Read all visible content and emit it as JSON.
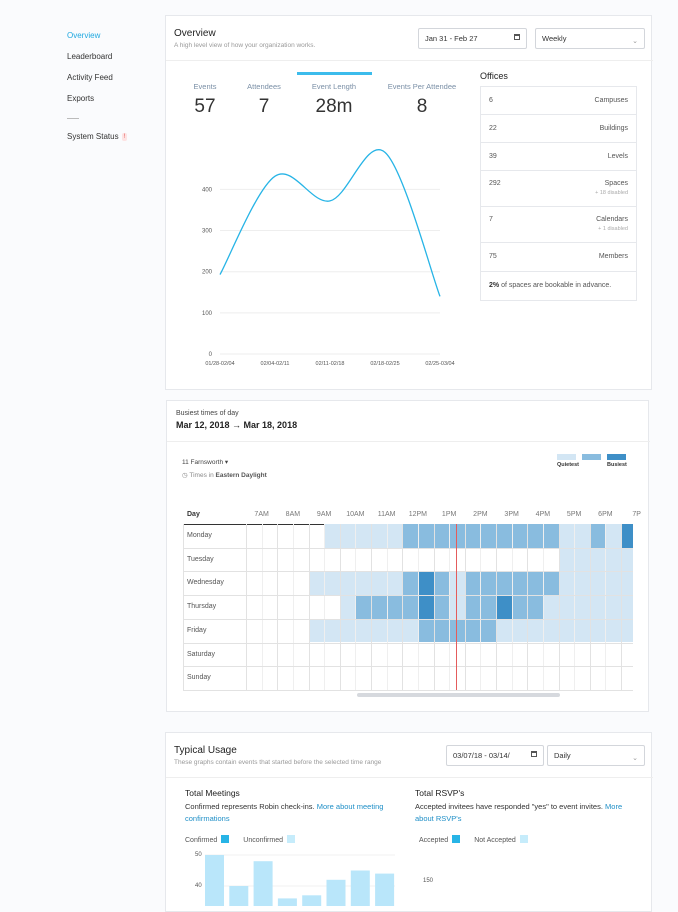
{
  "sidebar": {
    "items": [
      {
        "label": "Overview",
        "active": true
      },
      {
        "label": "Leaderboard"
      },
      {
        "label": "Activity Feed"
      },
      {
        "label": "Exports"
      }
    ],
    "status_label": "System Status",
    "status_badge": "!"
  },
  "overview": {
    "title": "Overview",
    "subtitle": "A high level view of how your organization works.",
    "date_range": "Jan 31 - Feb 27",
    "interval": "Weekly",
    "stats": [
      {
        "label": "Events",
        "value": "57"
      },
      {
        "label": "Attendees",
        "value": "7"
      },
      {
        "label": "Event Length",
        "value": "28m",
        "selected": true
      },
      {
        "label": "Events Per Attendee",
        "value": "8"
      }
    ]
  },
  "chart_data": {
    "type": "line",
    "categories": [
      "01/28-02/04",
      "02/04-02/11",
      "02/11-02/18",
      "02/18-02/25",
      "02/25-03/04"
    ],
    "values": [
      193,
      432,
      372,
      490,
      140
    ],
    "y_ticks": [
      "0",
      "100",
      "200",
      "300",
      "400"
    ],
    "ylim": [
      0,
      520
    ],
    "color": "#27b4e6",
    "grid": true
  },
  "offices": {
    "title": "Offices",
    "rows": [
      {
        "count": "6",
        "label": "Campuses"
      },
      {
        "count": "22",
        "label": "Buildings"
      },
      {
        "count": "39",
        "label": "Levels"
      },
      {
        "count": "292",
        "label": "Spaces",
        "note": "+ 18 disabled"
      },
      {
        "count": "7",
        "label": "Calendars",
        "note": "+ 1 disabled"
      },
      {
        "count": "75",
        "label": "Members"
      }
    ],
    "footer_bold": "2%",
    "footer_text": " of spaces are bookable in advance."
  },
  "busiest": {
    "label": "Busiest times of day",
    "range": "Mar 12, 2018 → Mar 18, 2018",
    "location": "11 Farnsworth",
    "timezone_prefix": "Times in ",
    "timezone": "Eastern Daylight",
    "legend_low": "Quietest",
    "legend_high": "Busiest",
    "colors": {
      "l1": "#d3e6f4",
      "l2": "#89bcdf",
      "l3": "#3e8fc7"
    },
    "hours": [
      "7AM",
      "8AM",
      "9AM",
      "10AM",
      "11AM",
      "12PM",
      "1PM",
      "2PM",
      "3PM",
      "4PM",
      "5PM",
      "6PM",
      "7P"
    ],
    "day_header": "Day",
    "days": [
      "Monday",
      "Tuesday",
      "Wednesday",
      "Thursday",
      "Friday",
      "Saturday",
      "Sunday"
    ],
    "grid": [
      [
        0,
        0,
        0,
        0,
        0,
        1,
        1,
        1,
        1,
        1,
        2,
        2,
        2,
        2,
        2,
        2,
        2,
        2,
        2,
        2,
        1,
        1,
        2,
        1,
        3,
        1,
        1,
        2,
        1,
        1,
        2,
        1,
        1,
        1,
        1,
        0,
        1,
        1,
        1,
        1
      ],
      [
        0,
        0,
        0,
        0,
        0,
        0,
        0,
        0,
        0,
        0,
        0,
        0,
        0,
        0,
        0,
        0,
        0,
        0,
        0,
        0,
        1,
        1,
        1,
        1,
        1,
        1,
        1,
        1,
        1,
        1,
        1,
        1,
        1,
        1,
        1,
        1,
        1,
        1,
        1,
        0
      ],
      [
        0,
        0,
        0,
        0,
        1,
        1,
        1,
        1,
        1,
        1,
        2,
        3,
        2,
        1,
        2,
        2,
        2,
        2,
        2,
        2,
        1,
        1,
        1,
        1,
        1,
        1,
        1,
        3,
        1,
        1,
        1,
        2,
        2,
        1,
        1,
        2,
        1,
        1,
        1,
        0
      ],
      [
        0,
        0,
        0,
        0,
        0,
        0,
        1,
        2,
        2,
        2,
        2,
        3,
        2,
        1,
        2,
        2,
        3,
        2,
        2,
        1,
        1,
        1,
        1,
        1,
        1,
        1,
        1,
        1,
        1,
        1,
        1,
        1,
        1,
        1,
        1,
        1,
        1,
        0,
        0,
        0
      ],
      [
        0,
        0,
        0,
        0,
        1,
        1,
        1,
        1,
        1,
        1,
        1,
        2,
        2,
        2,
        2,
        2,
        1,
        1,
        1,
        1,
        1,
        1,
        1,
        1,
        1,
        1,
        0,
        1,
        1,
        1,
        1,
        1,
        0,
        0,
        0,
        0,
        0,
        0,
        0,
        0
      ],
      [
        0,
        0,
        0,
        0,
        0,
        0,
        0,
        0,
        0,
        0,
        0,
        0,
        0,
        0,
        0,
        0,
        0,
        0,
        0,
        0,
        0,
        0,
        0,
        0,
        0,
        0,
        0,
        0,
        0,
        0,
        0,
        0,
        0,
        0,
        0,
        0,
        0,
        0,
        0,
        0
      ],
      [
        0,
        0,
        0,
        0,
        0,
        0,
        0,
        0,
        0,
        0,
        0,
        0,
        0,
        0,
        0,
        0,
        0,
        0,
        0,
        0,
        0,
        0,
        0,
        0,
        0,
        0,
        0,
        0,
        0,
        0,
        0,
        0,
        0,
        0,
        0,
        0,
        0,
        0,
        0,
        0
      ]
    ]
  },
  "usage": {
    "title": "Typical Usage",
    "subtitle": "These graphs contain events that started before the selected time range",
    "date_range": "03/07/18 - 03/14/",
    "interval": "Daily",
    "meetings": {
      "title": "Total Meetings",
      "desc": "Confirmed represents Robin check-ins. ",
      "link": "More about meeting confirmations",
      "legend": [
        "Confirmed",
        "Unconfirmed"
      ],
      "y_ticks": [
        "50",
        "40"
      ]
    },
    "rsvps": {
      "title": "Total RSVP's",
      "desc": "Accepted invitees have responded \"yes\" to event invites. ",
      "link": "More about RSVP's",
      "legend": [
        "Accepted",
        "Not Accepted"
      ],
      "y_ticks": [
        "150"
      ]
    }
  },
  "meetings_chart": {
    "type": "bar",
    "values": [
      50,
      40,
      48,
      36,
      37,
      42,
      45,
      44
    ],
    "color": "#b9e6fa"
  }
}
